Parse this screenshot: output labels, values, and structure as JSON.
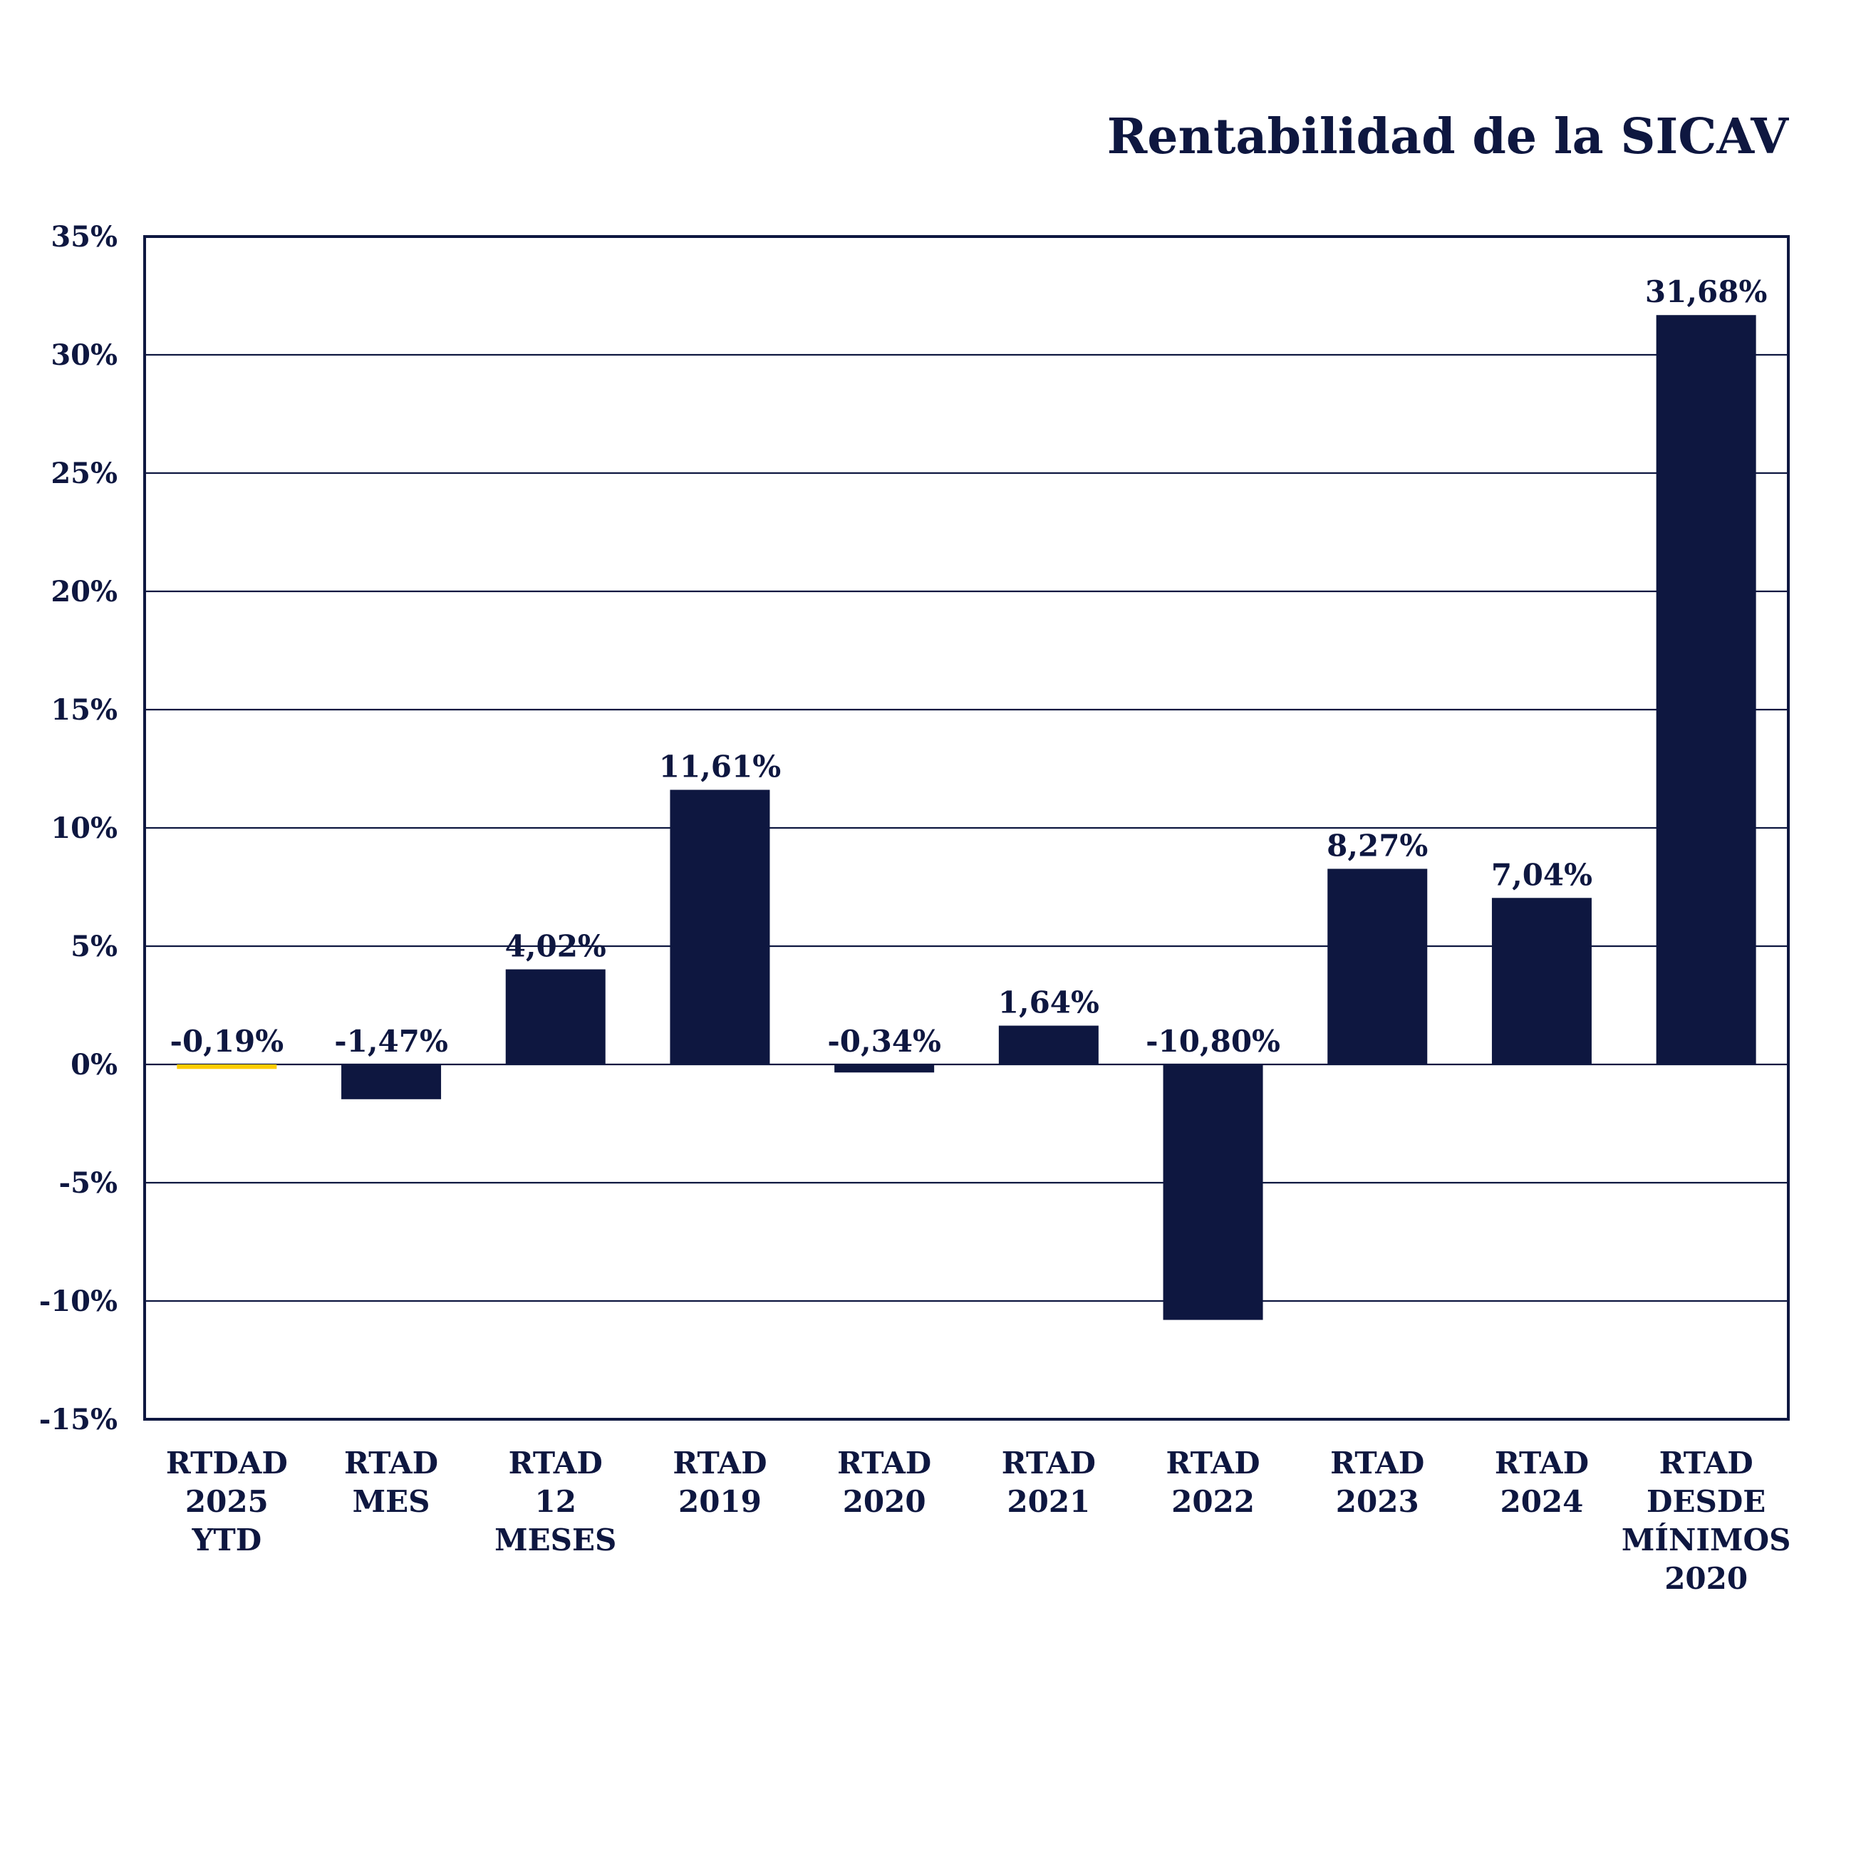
{
  "chart_data": {
    "type": "bar",
    "title": "Rentabilidad de la SICAV",
    "xlabel": "",
    "ylabel": "",
    "ylim": [
      -15,
      35
    ],
    "yticks": [
      35,
      30,
      25,
      20,
      15,
      10,
      5,
      0,
      -5,
      -10,
      -15
    ],
    "ytick_labels": [
      "35%",
      "30%",
      "25%",
      "20%",
      "15%",
      "10%",
      "5%",
      "0%",
      "-5%",
      "-10%",
      "-15%"
    ],
    "grid": true,
    "categories": [
      [
        "RTDAD",
        "2025",
        "YTD"
      ],
      [
        "RTAD",
        "MES"
      ],
      [
        "RTAD",
        "12",
        "MESES"
      ],
      [
        "RTAD",
        "2019"
      ],
      [
        "RTAD",
        "2020"
      ],
      [
        "RTAD",
        "2021"
      ],
      [
        "RTAD",
        "2022"
      ],
      [
        "RTAD",
        "2023"
      ],
      [
        "RTAD",
        "2024"
      ],
      [
        "RTAD",
        "DESDE",
        "MÍNIMOS",
        "2020"
      ]
    ],
    "values": [
      -0.19,
      -1.47,
      4.02,
      11.61,
      -0.34,
      1.64,
      -10.8,
      8.27,
      7.04,
      31.68
    ],
    "value_labels": [
      "-0,19%",
      "-1,47%",
      "4,02%",
      "11,61%",
      "-0,34%",
      "1,64%",
      "-10,80%",
      "8,27%",
      "7,04%",
      "31,68%"
    ],
    "colors": {
      "highlight": "#ffcc00",
      "bar": "#0e1740",
      "text": "#0e1740"
    },
    "highlight_index": 0
  }
}
